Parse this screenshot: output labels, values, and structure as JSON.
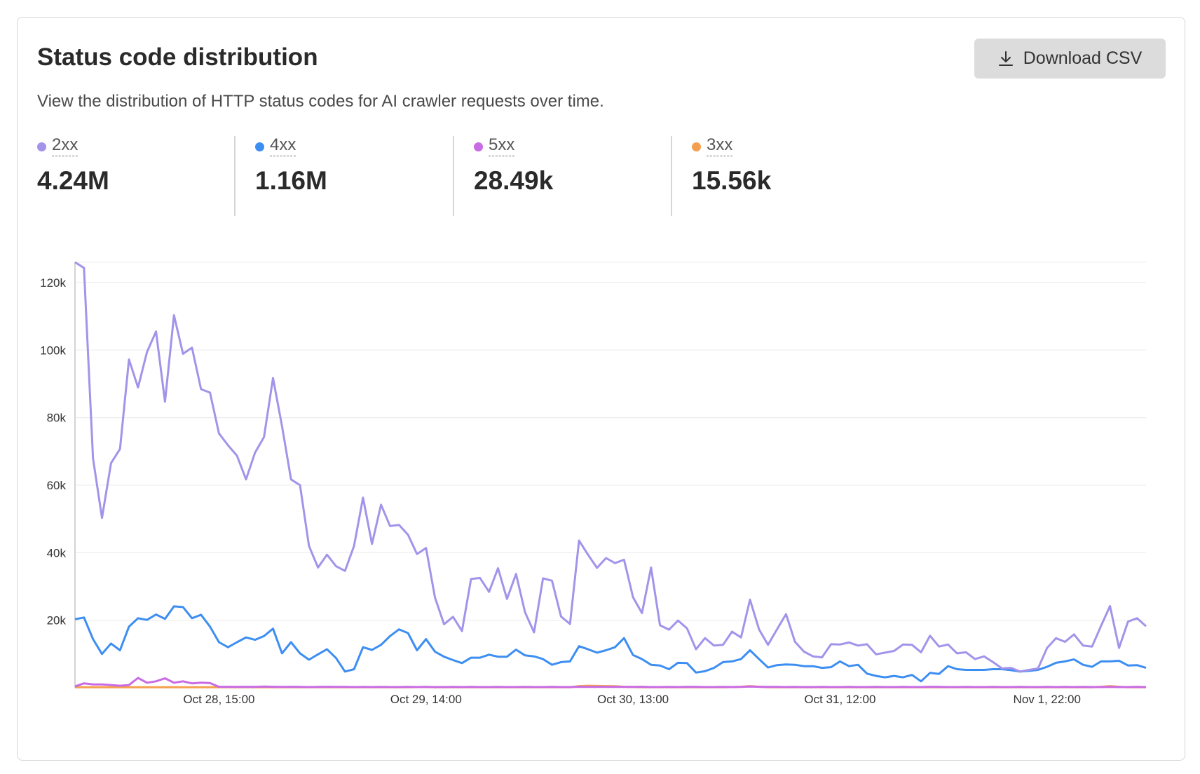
{
  "header": {
    "title": "Status code distribution",
    "subtitle": "View the distribution of HTTP status codes for AI crawler requests over time.",
    "download_label": "Download CSV",
    "download_icon": "download-icon"
  },
  "stats": [
    {
      "label": "2xx",
      "value": "4.24M",
      "color": "#a393ea"
    },
    {
      "label": "4xx",
      "value": "1.16M",
      "color": "#3d8ef2"
    },
    {
      "label": "5xx",
      "value": "28.49k",
      "color": "#c96be3"
    },
    {
      "label": "3xx",
      "value": "15.56k",
      "color": "#f5a04e"
    }
  ],
  "chart_data": {
    "type": "line",
    "title": "",
    "xlabel": "",
    "ylabel": "",
    "ylim": [
      0,
      126000
    ],
    "grid": true,
    "y_ticks": [
      {
        "value": 20000,
        "label": "20k"
      },
      {
        "value": 40000,
        "label": "40k"
      },
      {
        "value": 60000,
        "label": "60k"
      },
      {
        "value": 80000,
        "label": "80k"
      },
      {
        "value": 100000,
        "label": "100k"
      },
      {
        "value": 120000,
        "label": "120k"
      }
    ],
    "x_ticks": [
      {
        "index": 16,
        "label": "Oct 28, 15:00"
      },
      {
        "index": 39,
        "label": "Oct 29, 14:00"
      },
      {
        "index": 62,
        "label": "Oct 30, 13:00"
      },
      {
        "index": 85,
        "label": "Oct 31, 12:00"
      },
      {
        "index": 108,
        "label": "Nov 1, 22:00"
      }
    ],
    "series": [
      {
        "name": "2xx",
        "color": "#a393ea",
        "values": [
          126000,
          124300,
          67900,
          50300,
          66500,
          70700,
          97200,
          88900,
          99400,
          105500,
          84700,
          110300,
          98900,
          100700,
          88400,
          87400,
          75300,
          71800,
          68700,
          61700,
          69600,
          74200,
          91700,
          77500,
          61700,
          60000,
          42000,
          35600,
          39400,
          36000,
          34600,
          42000,
          56300,
          42600,
          54200,
          47900,
          48200,
          45300,
          39600,
          41400,
          26700,
          18800,
          21000,
          16800,
          32200,
          32500,
          28400,
          35400,
          26300,
          33700,
          22400,
          16400,
          32400,
          31700,
          21100,
          18900,
          43600,
          39400,
          35500,
          38400,
          36900,
          37900,
          26800,
          22100,
          35600,
          18500,
          17200,
          19900,
          17600,
          11400,
          14700,
          12500,
          12700,
          16600,
          14900,
          26100,
          17300,
          12700,
          17300,
          21800,
          13600,
          10700,
          9300,
          9000,
          12900,
          12800,
          13400,
          12500,
          12900,
          9900,
          10400,
          10900,
          12800,
          12700,
          10500,
          15400,
          12200,
          12800,
          10200,
          10500,
          8500,
          9300,
          7600,
          5700,
          5900,
          4800,
          5300,
          5700,
          11800,
          14700,
          13600,
          15800,
          12500,
          12200,
          18300,
          24200,
          11800,
          19600,
          20600,
          18200
        ]
      },
      {
        "name": "4xx",
        "color": "#3d8ef2",
        "values": [
          20300,
          20800,
          14400,
          10000,
          13100,
          11100,
          18100,
          20600,
          20100,
          21700,
          20400,
          24100,
          23900,
          20600,
          21600,
          18100,
          13500,
          12000,
          13500,
          14900,
          14200,
          15300,
          17500,
          10200,
          13500,
          10200,
          8300,
          9900,
          11400,
          8800,
          4800,
          5500,
          12000,
          11200,
          12700,
          15300,
          17300,
          16200,
          11100,
          14400,
          10700,
          9200,
          8200,
          7300,
          8900,
          8900,
          9800,
          9200,
          9200,
          11300,
          9600,
          9300,
          8500,
          6800,
          7600,
          7800,
          12300,
          11400,
          10400,
          11100,
          12000,
          14700,
          9700,
          8500,
          6800,
          6600,
          5500,
          7400,
          7300,
          4500,
          4900,
          5900,
          7600,
          7800,
          8500,
          11100,
          8500,
          6000,
          6700,
          6900,
          6800,
          6400,
          6400,
          5900,
          6100,
          7800,
          6400,
          6800,
          4200,
          3500,
          3100,
          3500,
          3100,
          3800,
          1900,
          4400,
          4100,
          6400,
          5500,
          5300,
          5300,
          5300,
          5500,
          5500,
          5200,
          4800,
          5000,
          5300,
          6200,
          7400,
          7800,
          8400,
          6800,
          6200,
          7800,
          7800,
          8000,
          6600,
          6700,
          5900
        ]
      },
      {
        "name": "5xx",
        "color": "#c96be3",
        "values": [
          400,
          1300,
          1000,
          1000,
          800,
          600,
          800,
          2900,
          1500,
          1900,
          2800,
          1500,
          1900,
          1300,
          1500,
          1400,
          300,
          300,
          250,
          300,
          250,
          350,
          300,
          250,
          300,
          250,
          200,
          250,
          300,
          250,
          250,
          200,
          250,
          200,
          250,
          200,
          200,
          250,
          200,
          250,
          200,
          200,
          250,
          200,
          250,
          200,
          200,
          250,
          200,
          200,
          250,
          200,
          200,
          250,
          200,
          200,
          300,
          250,
          300,
          250,
          300,
          250,
          250,
          300,
          200,
          200,
          250,
          200,
          300,
          250,
          200,
          200,
          250,
          200,
          250,
          350,
          300,
          250,
          250,
          200,
          250,
          200,
          200,
          250,
          200,
          200,
          250,
          200,
          200,
          250,
          200,
          200,
          250,
          200,
          200,
          300,
          250,
          200,
          200,
          250,
          200,
          200,
          250,
          200,
          200,
          250,
          200,
          200,
          250,
          200,
          250,
          200,
          250,
          200,
          200,
          250,
          200,
          200,
          250,
          200
        ]
      },
      {
        "name": "3xx",
        "color": "#f5a04e",
        "values": [
          150,
          150,
          150,
          150,
          150,
          150,
          150,
          150,
          150,
          150,
          150,
          150,
          150,
          150,
          150,
          150,
          150,
          150,
          150,
          150,
          150,
          150,
          150,
          150,
          150,
          150,
          150,
          150,
          150,
          150,
          150,
          150,
          150,
          150,
          150,
          150,
          150,
          150,
          200,
          200,
          150,
          150,
          150,
          150,
          150,
          150,
          150,
          150,
          150,
          150,
          150,
          150,
          150,
          150,
          150,
          150,
          500,
          600,
          550,
          500,
          450,
          300,
          200,
          150,
          150,
          150,
          150,
          150,
          150,
          150,
          150,
          150,
          150,
          200,
          300,
          500,
          300,
          150,
          150,
          150,
          150,
          150,
          150,
          150,
          150,
          150,
          150,
          150,
          150,
          150,
          150,
          150,
          150,
          150,
          150,
          150,
          150,
          150,
          150,
          150,
          150,
          150,
          150,
          150,
          150,
          150,
          150,
          150,
          150,
          150,
          150,
          150,
          150,
          150,
          300,
          500,
          300,
          150,
          150,
          150
        ]
      }
    ]
  }
}
